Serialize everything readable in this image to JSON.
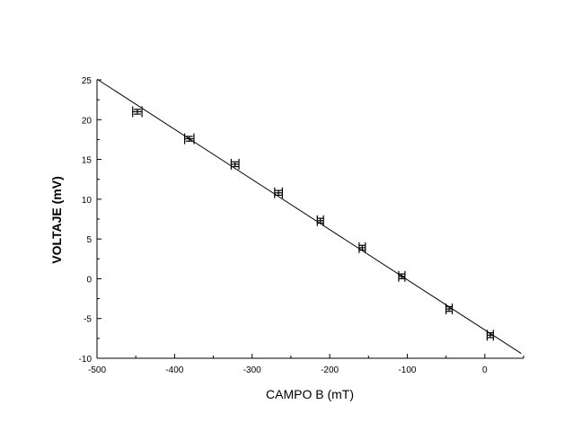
{
  "chart_data": {
    "type": "scatter",
    "title": "",
    "xlabel": "CAMPO B (mT)",
    "ylabel": "VOLTAJE (mV)",
    "xlim": [
      -500,
      50
    ],
    "ylim": [
      -10,
      25
    ],
    "x_ticks": [
      -500,
      -400,
      -300,
      -200,
      -100,
      0
    ],
    "y_ticks": [
      -10,
      -5,
      0,
      5,
      10,
      15,
      20,
      25
    ],
    "grid": false,
    "legend": "none",
    "series": [
      {
        "marker": "plus-with-error-bars",
        "x": [
          -448,
          -381,
          -322,
          -266,
          -212,
          -158,
          -107,
          -46,
          7
        ],
        "y": [
          21.0,
          17.6,
          14.4,
          10.8,
          7.3,
          3.9,
          0.3,
          -3.8,
          -7.1
        ],
        "x_error": [
          6,
          6,
          5,
          5,
          4,
          4,
          4,
          4,
          4
        ],
        "y_error": [
          0.3,
          0.3,
          0.3,
          0.3,
          0.3,
          0.3,
          0.3,
          0.3,
          0.3
        ]
      }
    ],
    "fit_line": {
      "x": [
        -500,
        47
      ],
      "y": [
        25.1,
        -9.4
      ]
    },
    "colors": {
      "marks": "#000000",
      "background": "#ffffff"
    }
  }
}
